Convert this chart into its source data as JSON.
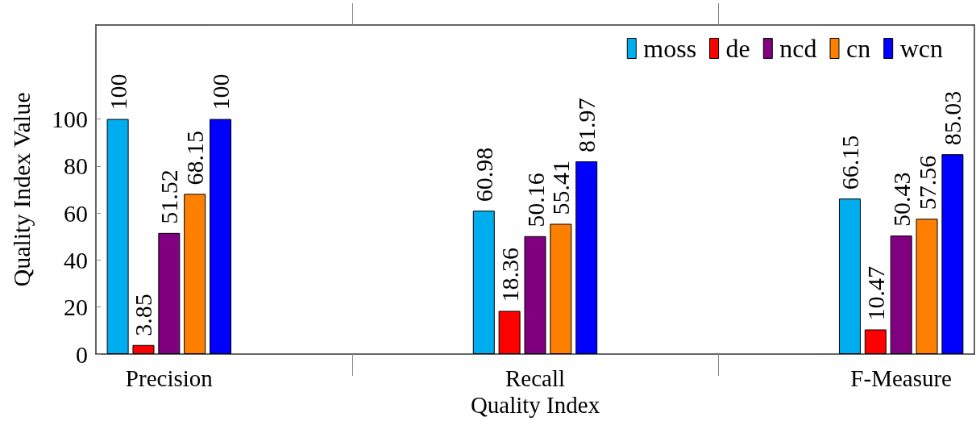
{
  "chart_data": {
    "type": "bar",
    "xlabel": "Quality Index",
    "ylabel": "Quality Index Value",
    "categories": [
      "Precision",
      "Recall",
      "F-Measure"
    ],
    "series": [
      {
        "name": "moss",
        "color": "#00aeef",
        "values": [
          100,
          60.98,
          66.15
        ]
      },
      {
        "name": "de",
        "color": "#ff0000",
        "values": [
          3.85,
          18.36,
          10.47
        ]
      },
      {
        "name": "ncd",
        "color": "#800080",
        "values": [
          51.52,
          50.16,
          50.43
        ]
      },
      {
        "name": "cn",
        "color": "#ff8000",
        "values": [
          68.15,
          55.41,
          57.56
        ]
      },
      {
        "name": "wcn",
        "color": "#0000ff",
        "values": [
          100,
          81.97,
          85.03
        ]
      }
    ],
    "ylim": [
      0,
      140
    ],
    "yticks": [
      0,
      20,
      40,
      60,
      80,
      100
    ],
    "data_labels": true,
    "legend": "top right"
  }
}
